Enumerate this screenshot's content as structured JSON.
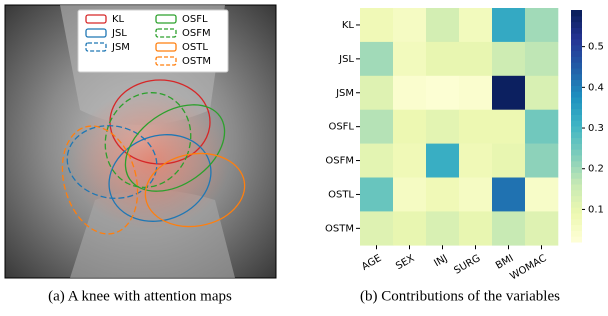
{
  "chart_data": [
    {
      "type": "image",
      "caption": "(a) A knee with attention maps",
      "legend": [
        {
          "name": "KL",
          "color": "#d62728",
          "dashed": false
        },
        {
          "name": "JSL",
          "color": "#1f77b4",
          "dashed": false
        },
        {
          "name": "JSM",
          "color": "#1f77b4",
          "dashed": true
        },
        {
          "name": "OSFL",
          "color": "#2ca02c",
          "dashed": false
        },
        {
          "name": "OSFM",
          "color": "#2ca02c",
          "dashed": true
        },
        {
          "name": "OSTL",
          "color": "#ff7f0e",
          "dashed": false
        },
        {
          "name": "OSTM",
          "color": "#ff7f0e",
          "dashed": true
        }
      ]
    },
    {
      "type": "heatmap",
      "caption": "(b) Contributions of the variables",
      "colormap": "YlGnBu",
      "rows": [
        "KL",
        "JSL",
        "JSM",
        "OSFL",
        "OSFM",
        "OSTL",
        "OSTM"
      ],
      "columns": [
        "AGE",
        "SEX",
        "INJ",
        "SURG",
        "BMI",
        "WOMAC"
      ],
      "values": [
        [
          0.08,
          0.06,
          0.14,
          0.07,
          0.33,
          0.2
        ],
        [
          0.2,
          0.07,
          0.1,
          0.1,
          0.15,
          0.17
        ],
        [
          0.12,
          0.04,
          0.03,
          0.04,
          0.58,
          0.13
        ],
        [
          0.18,
          0.09,
          0.11,
          0.09,
          0.09,
          0.25
        ],
        [
          0.11,
          0.08,
          0.32,
          0.08,
          0.1,
          0.22
        ],
        [
          0.26,
          0.06,
          0.08,
          0.06,
          0.42,
          0.05
        ],
        [
          0.12,
          0.1,
          0.13,
          0.1,
          0.16,
          0.12
        ]
      ],
      "clim": [
        0.02,
        0.59
      ],
      "cticks": [
        0.1,
        0.2,
        0.3,
        0.4,
        0.5
      ]
    }
  ]
}
